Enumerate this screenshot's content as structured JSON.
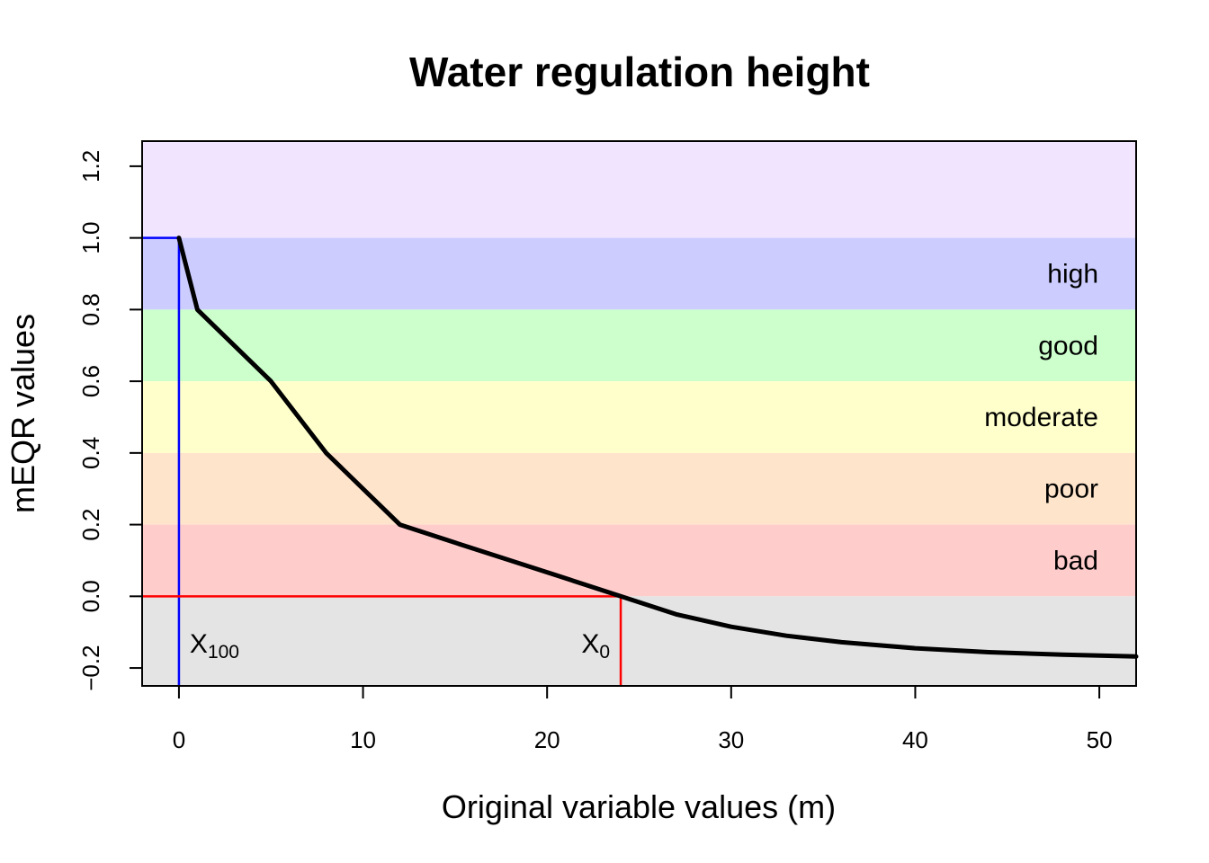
{
  "chart_data": {
    "type": "line",
    "title": "Water regulation height",
    "xlabel": "Original variable values (m)",
    "ylabel": "mEQR values",
    "xlim": [
      -2,
      52
    ],
    "ylim": [
      -0.25,
      1.27
    ],
    "x_ticks": [
      0,
      10,
      20,
      30,
      40,
      50
    ],
    "x_tick_labels": [
      "0",
      "10",
      "20",
      "30",
      "40",
      "50"
    ],
    "y_ticks": [
      -0.2,
      0.0,
      0.2,
      0.4,
      0.6,
      0.8,
      1.0,
      1.2
    ],
    "y_tick_labels": [
      "−0.2",
      "0.0",
      "0.2",
      "0.4",
      "0.6",
      "0.8",
      "1.0",
      "1.2"
    ],
    "bands": [
      {
        "name": "",
        "ymin": 1.0,
        "ymax": 1.27,
        "color": "#f0e4ff"
      },
      {
        "name": "high",
        "ymin": 0.8,
        "ymax": 1.0,
        "color": "#ccccff"
      },
      {
        "name": "good",
        "ymin": 0.6,
        "ymax": 0.8,
        "color": "#ccffcc"
      },
      {
        "name": "moderate",
        "ymin": 0.4,
        "ymax": 0.6,
        "color": "#ffffcc"
      },
      {
        "name": "poor",
        "ymin": 0.2,
        "ymax": 0.4,
        "color": "#ffe4cc"
      },
      {
        "name": "bad",
        "ymin": 0.0,
        "ymax": 0.2,
        "color": "#ffcccc"
      },
      {
        "name": "",
        "ymin": -0.25,
        "ymax": 0.0,
        "color": "#e4e4e4"
      }
    ],
    "series": [
      {
        "color": "#000000",
        "x": [
          0,
          1,
          5,
          8,
          12,
          16,
          20,
          24,
          27,
          30,
          33,
          36,
          40,
          44,
          48,
          52
        ],
        "y": [
          1.0,
          0.8,
          0.6,
          0.4,
          0.2,
          0.133,
          0.067,
          0.0,
          -0.05,
          -0.085,
          -0.11,
          -0.128,
          -0.145,
          -0.156,
          -0.163,
          -0.168
        ]
      }
    ],
    "reference_lines": [
      {
        "label": "X",
        "subscript": "100",
        "x": 0,
        "y": 1.0,
        "color": "#0000ff"
      },
      {
        "label": "X",
        "subscript": "0",
        "x": 24,
        "y": 0.0,
        "color": "#ff0000"
      }
    ],
    "grid": false,
    "legend": "none"
  }
}
